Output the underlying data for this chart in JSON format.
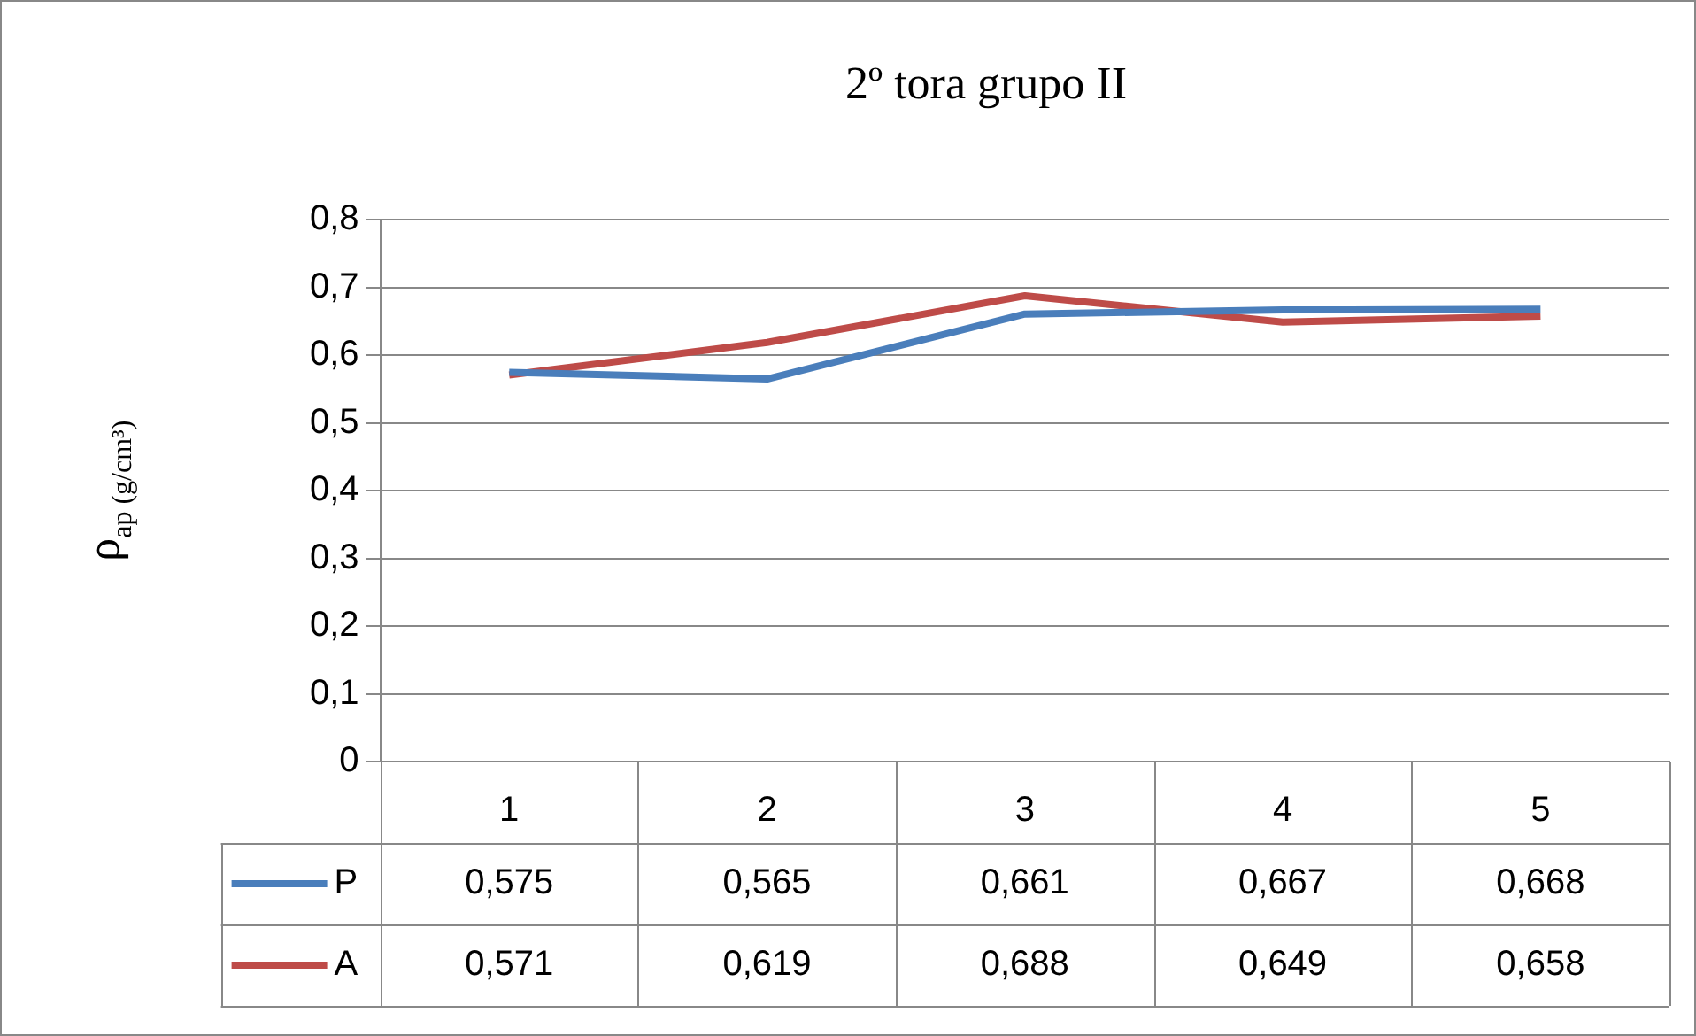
{
  "chart_data": {
    "type": "line",
    "title": "2º tora grupo II",
    "ylabel": "ρ$_{ap (g/cm³)}$",
    "categories": [
      "1",
      "2",
      "3",
      "4",
      "5"
    ],
    "series": [
      {
        "name": "P",
        "color": "#4a7ebb",
        "values": [
          0.575,
          0.565,
          0.661,
          0.667,
          0.668
        ],
        "value_labels": [
          "0,575",
          "0,565",
          "0,661",
          "0,667",
          "0,668"
        ]
      },
      {
        "name": "A",
        "color": "#be4b48",
        "values": [
          0.571,
          0.619,
          0.688,
          0.649,
          0.658
        ],
        "value_labels": [
          "0,571",
          "0,619",
          "0,688",
          "0,649",
          "0,658"
        ]
      }
    ],
    "ylim": [
      0,
      0.8
    ],
    "yticks": [
      {
        "value": 0,
        "label": "0"
      },
      {
        "value": 0.1,
        "label": "0,1"
      },
      {
        "value": 0.2,
        "label": "0,2"
      },
      {
        "value": 0.3,
        "label": "0,3"
      },
      {
        "value": 0.4,
        "label": "0,4"
      },
      {
        "value": 0.5,
        "label": "0,5"
      },
      {
        "value": 0.6,
        "label": "0,6"
      },
      {
        "value": 0.7,
        "label": "0,7"
      },
      {
        "value": 0.8,
        "label": "0,8"
      }
    ],
    "grid": "y",
    "legend": "bottom",
    "marker": "none",
    "line_style": "solid"
  }
}
